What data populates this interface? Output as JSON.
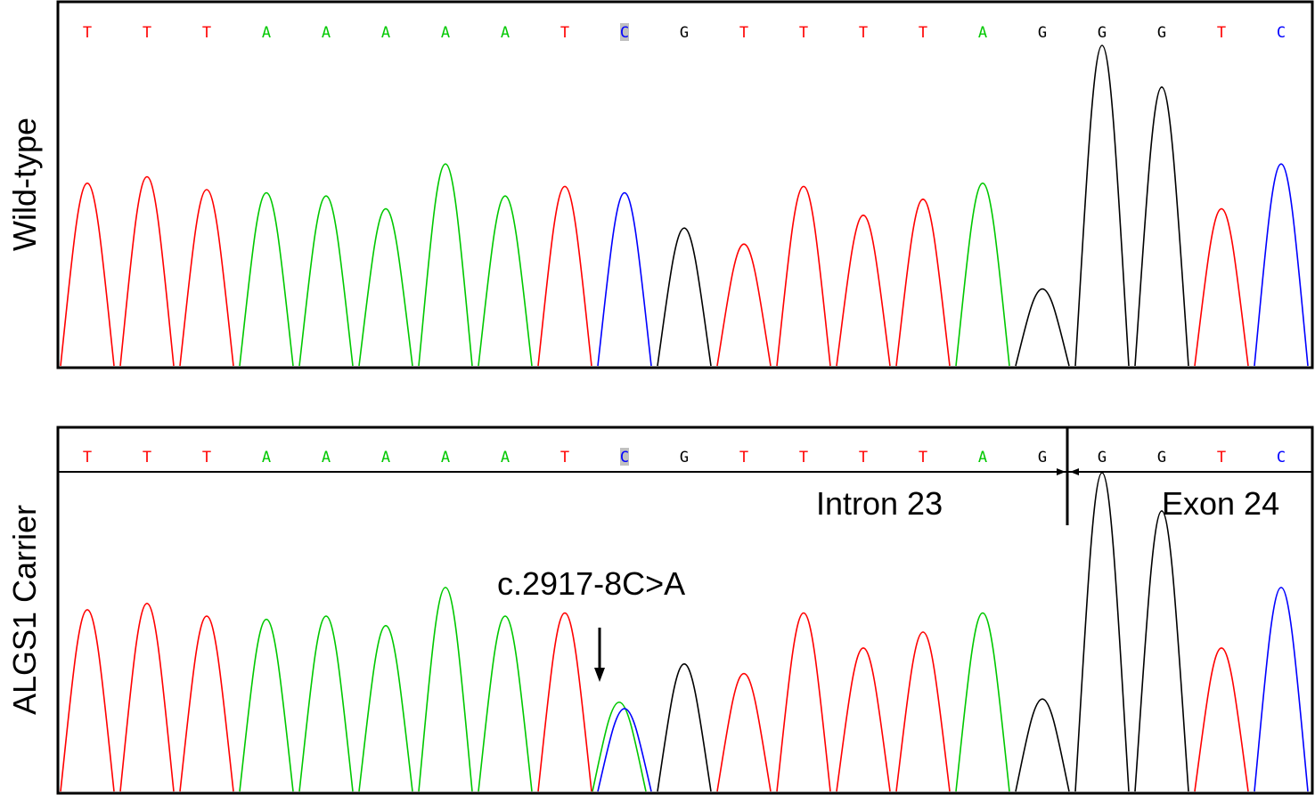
{
  "figure": {
    "panels": [
      {
        "id": "wild-type",
        "label": "Wild-type",
        "bases": [
          "T",
          "T",
          "T",
          "A",
          "A",
          "A",
          "A",
          "A",
          "T",
          "C",
          "G",
          "T",
          "T",
          "T",
          "T",
          "A",
          "G",
          "G",
          "G",
          "T",
          "C"
        ],
        "highlight_index": 9
      },
      {
        "id": "carrier",
        "label": "ALGS1 Carrier",
        "bases": [
          "T",
          "T",
          "T",
          "A",
          "A",
          "A",
          "A",
          "A",
          "T",
          "C",
          "G",
          "T",
          "T",
          "T",
          "T",
          "A",
          "G",
          "G",
          "G",
          "T",
          "C"
        ],
        "highlight_index": 9
      }
    ],
    "annotations": {
      "mutation": "c.2917-8C>A",
      "intron": "Intron 23",
      "exon": "Exon 24"
    }
  },
  "chart_data": [
    {
      "type": "line",
      "subtype": "chromatogram",
      "name": "Wild-type",
      "x_positions": [
        1,
        2,
        3,
        4,
        5,
        6,
        7,
        8,
        9,
        10,
        11,
        12,
        13,
        14,
        15,
        16,
        17,
        18,
        19,
        20,
        21
      ],
      "base_calls": [
        "T",
        "T",
        "T",
        "A",
        "A",
        "A",
        "A",
        "A",
        "T",
        "C",
        "G",
        "T",
        "T",
        "T",
        "T",
        "A",
        "G",
        "G",
        "G",
        "T",
        "C"
      ],
      "peak_heights": [
        0.57,
        0.59,
        0.55,
        0.54,
        0.53,
        0.49,
        0.63,
        0.53,
        0.56,
        0.54,
        0.43,
        0.38,
        0.56,
        0.47,
        0.52,
        0.57,
        0.24,
        1.0,
        0.87,
        0.49,
        0.63
      ],
      "secondary_peaks": [],
      "ylim": [
        0,
        1
      ]
    },
    {
      "type": "line",
      "subtype": "chromatogram",
      "name": "ALGS1 Carrier",
      "x_positions": [
        1,
        2,
        3,
        4,
        5,
        6,
        7,
        8,
        9,
        10,
        11,
        12,
        13,
        14,
        15,
        16,
        17,
        18,
        19,
        20,
        21
      ],
      "base_calls": [
        "T",
        "T",
        "T",
        "A",
        "A",
        "A",
        "A",
        "A",
        "T",
        "C",
        "G",
        "T",
        "T",
        "T",
        "T",
        "A",
        "G",
        "G",
        "G",
        "T",
        "C"
      ],
      "peak_heights": [
        0.57,
        0.59,
        0.55,
        0.54,
        0.55,
        0.52,
        0.64,
        0.55,
        0.56,
        0.26,
        0.4,
        0.37,
        0.56,
        0.45,
        0.5,
        0.56,
        0.29,
        1.0,
        0.88,
        0.45,
        0.64
      ],
      "secondary_peaks": [
        {
          "index": 9,
          "base": "A",
          "height": 0.28
        }
      ],
      "ylim": [
        0,
        1
      ]
    }
  ],
  "colors": {
    "T": "#ff0000",
    "A": "#00c800",
    "C": "#0000ff",
    "G": "#000000",
    "highlight": "#c0c0c0",
    "frame": "#000000"
  }
}
